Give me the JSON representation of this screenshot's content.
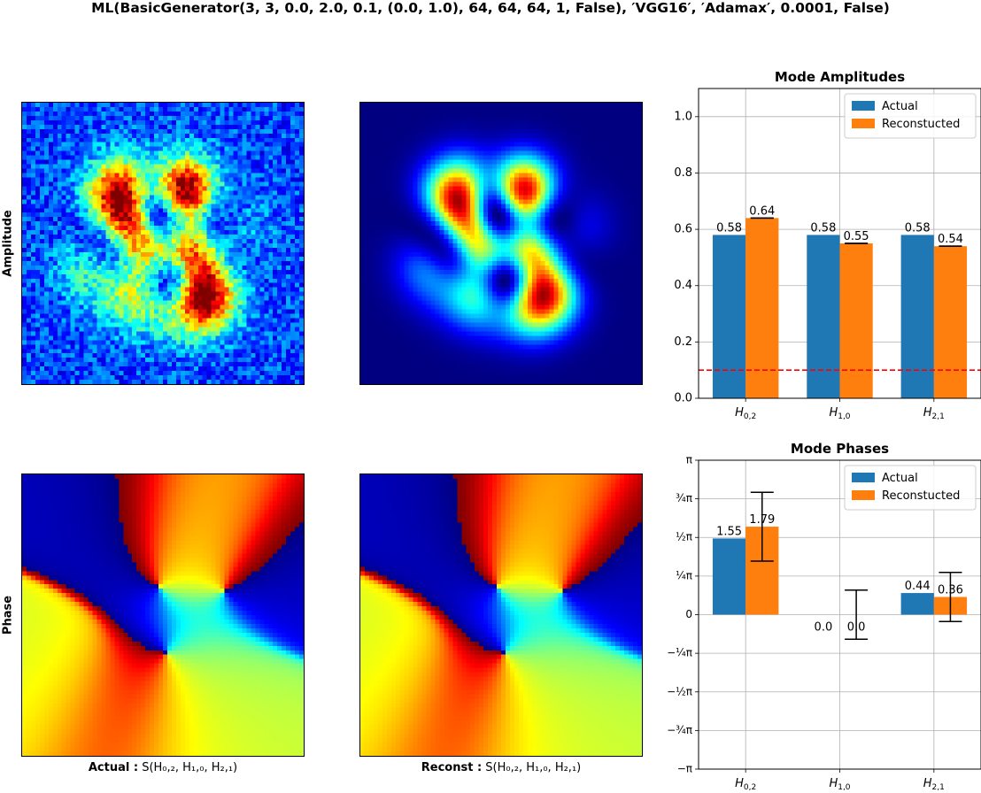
{
  "suptitle": "ML(BasicGenerator(3, 3, 0.0, 2.0, 0.1, (0.0, 1.0), 64, 64, 64, 1, False), ′VGG16′, ′Adamax′, 0.0001, False)",
  "row_labels": {
    "amplitude": "Amplitude",
    "phase": "Phase"
  },
  "captions": {
    "actual": {
      "bold": "Actual :",
      "rest": " S(H₀,₂, H₁,₀, H₂,₁)"
    },
    "reconst": {
      "bold": "Reconst :",
      "rest": " S(H₀,₂, H₁,₀, H₂,₁)"
    }
  },
  "chart_data": [
    {
      "type": "bar",
      "title": "Mode Amplitudes",
      "categories": [
        "H0,2",
        "H1,0",
        "H2,1"
      ],
      "series": [
        {
          "name": "Actual",
          "color": "#1f77b4",
          "values": [
            0.58,
            0.58,
            0.58
          ],
          "labels": [
            "0.58",
            "0.58",
            "0.58"
          ]
        },
        {
          "name": "Reconstucted",
          "color": "#ff7f0e",
          "values": [
            0.64,
            0.55,
            0.54
          ],
          "labels": [
            "0.64",
            "0.55",
            "0.54"
          ],
          "error": [
            0.0,
            0.0,
            0.0
          ]
        }
      ],
      "ylim": [
        0,
        1.1
      ],
      "yticks": [
        0.0,
        0.2,
        0.4,
        0.6,
        0.8,
        1.0
      ],
      "yticklabels": [
        "0.0",
        "0.2",
        "0.4",
        "0.6",
        "0.8",
        "1.0"
      ],
      "threshold": {
        "value": 0.1,
        "color": "#ff0000",
        "style": "dashed"
      },
      "grid": true,
      "legend": "top-right"
    },
    {
      "type": "bar",
      "title": "Mode Phases",
      "categories": [
        "H0,2",
        "H1,0",
        "H2,1"
      ],
      "series": [
        {
          "name": "Actual",
          "color": "#1f77b4",
          "values": [
            1.55,
            0.0,
            0.44
          ],
          "labels": [
            "1.55",
            "0.0",
            "0.44"
          ]
        },
        {
          "name": "Reconstucted",
          "color": "#ff7f0e",
          "values": [
            1.79,
            0.0,
            0.36
          ],
          "labels": [
            "1.79",
            "0.0",
            "0.36"
          ],
          "error": [
            0.7,
            0.5,
            0.5
          ]
        }
      ],
      "ylim": [
        -3.14159,
        3.14159
      ],
      "ytick_values_in_pi": [
        -1,
        -0.75,
        -0.5,
        -0.25,
        0,
        0.25,
        0.5,
        0.75,
        1
      ],
      "yticklabels": [
        "−π",
        "−¾π",
        "−½π",
        "−¼π",
        "0",
        "¼π",
        "½π",
        "¾π",
        "π"
      ],
      "grid": true,
      "legend": "top-right"
    }
  ],
  "images": {
    "colormap": "jet",
    "amplitude_actual": "intensity of S(H0,2, H1,0, H2,1) with noise",
    "amplitude_reconst": "intensity of S(H0,2, H1,0, H2,1)",
    "phase_actual": "phase of S(H0,2, H1,0, H2,1)",
    "phase_reconst": "phase of S(H0,2, H1,0, H2,1)"
  }
}
